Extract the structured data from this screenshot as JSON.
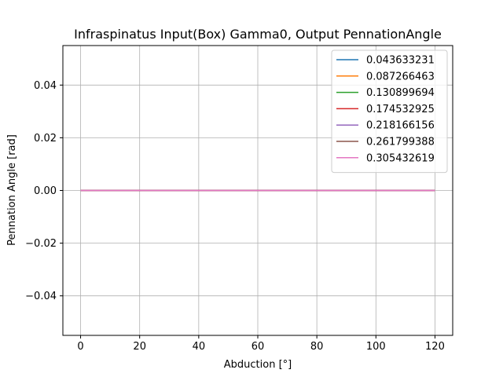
{
  "chart_data": {
    "type": "line",
    "title": "Infraspinatus Input(Box) Gamma0, Output PennationAngle",
    "xlabel": "Abduction [°]",
    "ylabel": "Pennation Angle [rad]",
    "xlim": [
      -6,
      126
    ],
    "ylim": [
      -0.055,
      0.055
    ],
    "x_ticks": [
      0,
      20,
      40,
      60,
      80,
      100,
      120
    ],
    "y_ticks": [
      -0.04,
      -0.02,
      0.0,
      0.02,
      0.04
    ],
    "x_tick_labels": [
      "0",
      "20",
      "40",
      "60",
      "80",
      "100",
      "120"
    ],
    "y_tick_labels": [
      "−0.04",
      "−0.02",
      "0.00",
      "0.02",
      "0.04"
    ],
    "grid": true,
    "legend_position": "top-right",
    "x": [
      0,
      20,
      40,
      60,
      80,
      100,
      120
    ],
    "series": [
      {
        "name": "0.043633231",
        "color": "#1f77b4",
        "values": [
          0,
          0,
          0,
          0,
          0,
          0,
          0
        ]
      },
      {
        "name": "0.087266463",
        "color": "#ff7f0e",
        "values": [
          0,
          0,
          0,
          0,
          0,
          0,
          0
        ]
      },
      {
        "name": "0.130899694",
        "color": "#2ca02c",
        "values": [
          0,
          0,
          0,
          0,
          0,
          0,
          0
        ]
      },
      {
        "name": "0.174532925",
        "color": "#d62728",
        "values": [
          0,
          0,
          0,
          0,
          0,
          0,
          0
        ]
      },
      {
        "name": "0.218166156",
        "color": "#9467bd",
        "values": [
          0,
          0,
          0,
          0,
          0,
          0,
          0
        ]
      },
      {
        "name": "0.261799388",
        "color": "#8c564b",
        "values": [
          0,
          0,
          0,
          0,
          0,
          0,
          0
        ]
      },
      {
        "name": "0.305432619",
        "color": "#e377c2",
        "values": [
          0,
          0,
          0,
          0,
          0,
          0,
          0
        ]
      }
    ]
  }
}
